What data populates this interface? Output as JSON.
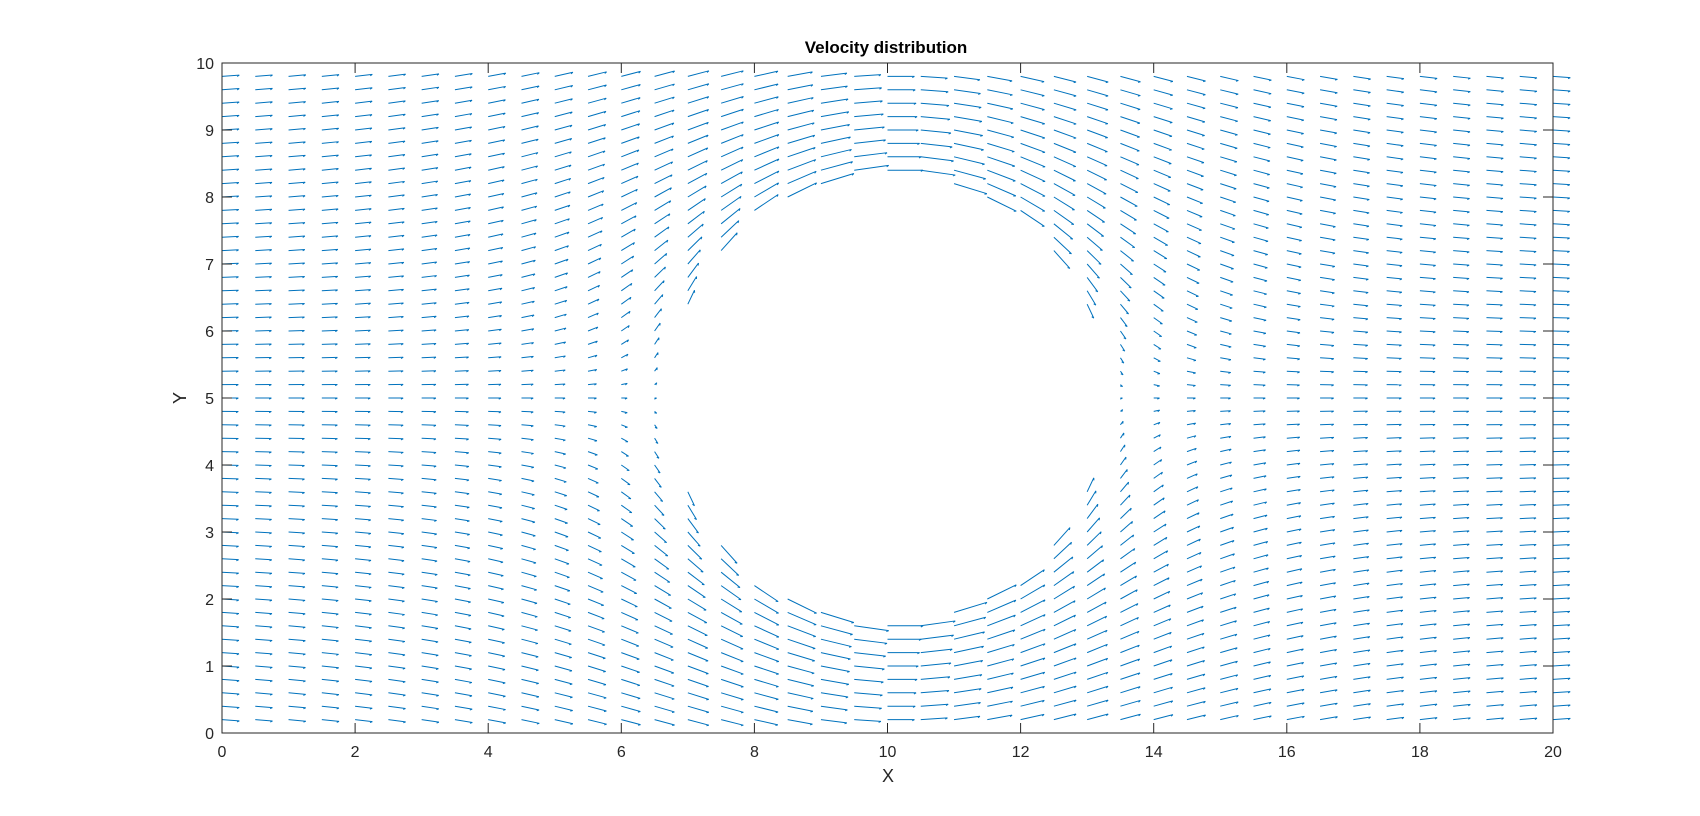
{
  "chart_data": {
    "type": "quiver",
    "title": "Velocity distribution",
    "xlabel": "X",
    "ylabel": "Y",
    "xlim": [
      0,
      20
    ],
    "ylim": [
      0,
      10
    ],
    "xticks": [
      0,
      2,
      4,
      6,
      8,
      10,
      12,
      14,
      16,
      18,
      20
    ],
    "yticks": [
      0,
      1,
      2,
      3,
      4,
      5,
      6,
      7,
      8,
      9,
      10
    ],
    "grid": false,
    "box": true,
    "arrow_color": "#0072BD",
    "field": {
      "description_free_stream_velocity": 1.0,
      "obstacle": {
        "shape": "circle",
        "center": [
          10,
          5
        ],
        "radius": 3.3
      },
      "grid_spacing_x": 0.5,
      "grid_spacing_y": 0.2
    }
  },
  "colors": {
    "axes": "#262626",
    "arrow": "#0072BD",
    "background": "#ffffff"
  }
}
